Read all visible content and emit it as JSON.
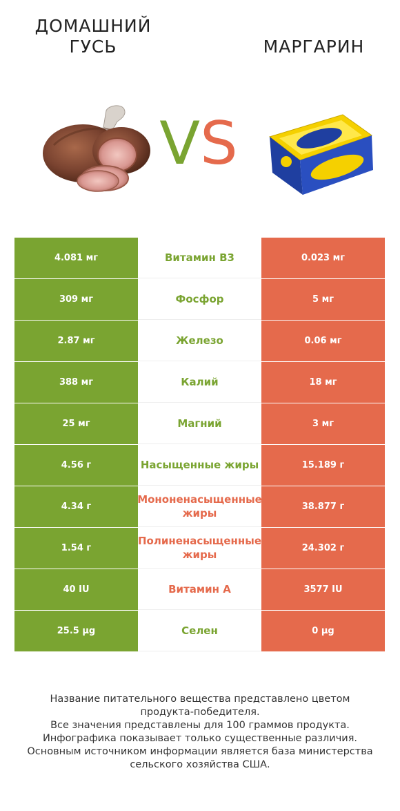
{
  "left": {
    "title": "ДОМАШНИЙ ГУСЬ",
    "image_icon": "roasted-goose-meat-icon",
    "color": "#7aa431"
  },
  "right": {
    "title": "МАРГАРИН",
    "image_icon": "margarine-pack-icon",
    "color": "#e56a4c"
  },
  "vs": {
    "v": "V",
    "s": "S"
  },
  "rows": [
    {
      "nutrient": "Витамин B3",
      "left": "4.081 мг",
      "right": "0.023 мг",
      "winner": "left"
    },
    {
      "nutrient": "Фосфор",
      "left": "309 мг",
      "right": "5 мг",
      "winner": "left"
    },
    {
      "nutrient": "Железо",
      "left": "2.87 мг",
      "right": "0.06 мг",
      "winner": "left"
    },
    {
      "nutrient": "Калий",
      "left": "388 мг",
      "right": "18 мг",
      "winner": "left"
    },
    {
      "nutrient": "Магний",
      "left": "25 мг",
      "right": "3 мг",
      "winner": "left"
    },
    {
      "nutrient": "Насыщенные жиры",
      "left": "4.56 г",
      "right": "15.189 г",
      "winner": "left"
    },
    {
      "nutrient": "Мононенасыщенные жиры",
      "left": "4.34 г",
      "right": "38.877 г",
      "winner": "right"
    },
    {
      "nutrient": "Полиненасыщенные жиры",
      "left": "1.54 г",
      "right": "24.302 г",
      "winner": "right"
    },
    {
      "nutrient": "Витамин A",
      "left": "40 IU",
      "right": "3577 IU",
      "winner": "right"
    },
    {
      "nutrient": "Селен",
      "left": "25.5 µg",
      "right": "0 µg",
      "winner": "left"
    }
  ],
  "footer": [
    "Название питательного вещества представлено цветом",
    "продукта-победителя.",
    "Все значения представлены для 100 граммов продукта.",
    "Инфографика показывает только существенные различия.",
    "Основным источником информации является база министерства",
    "сельского хозяйства США."
  ]
}
